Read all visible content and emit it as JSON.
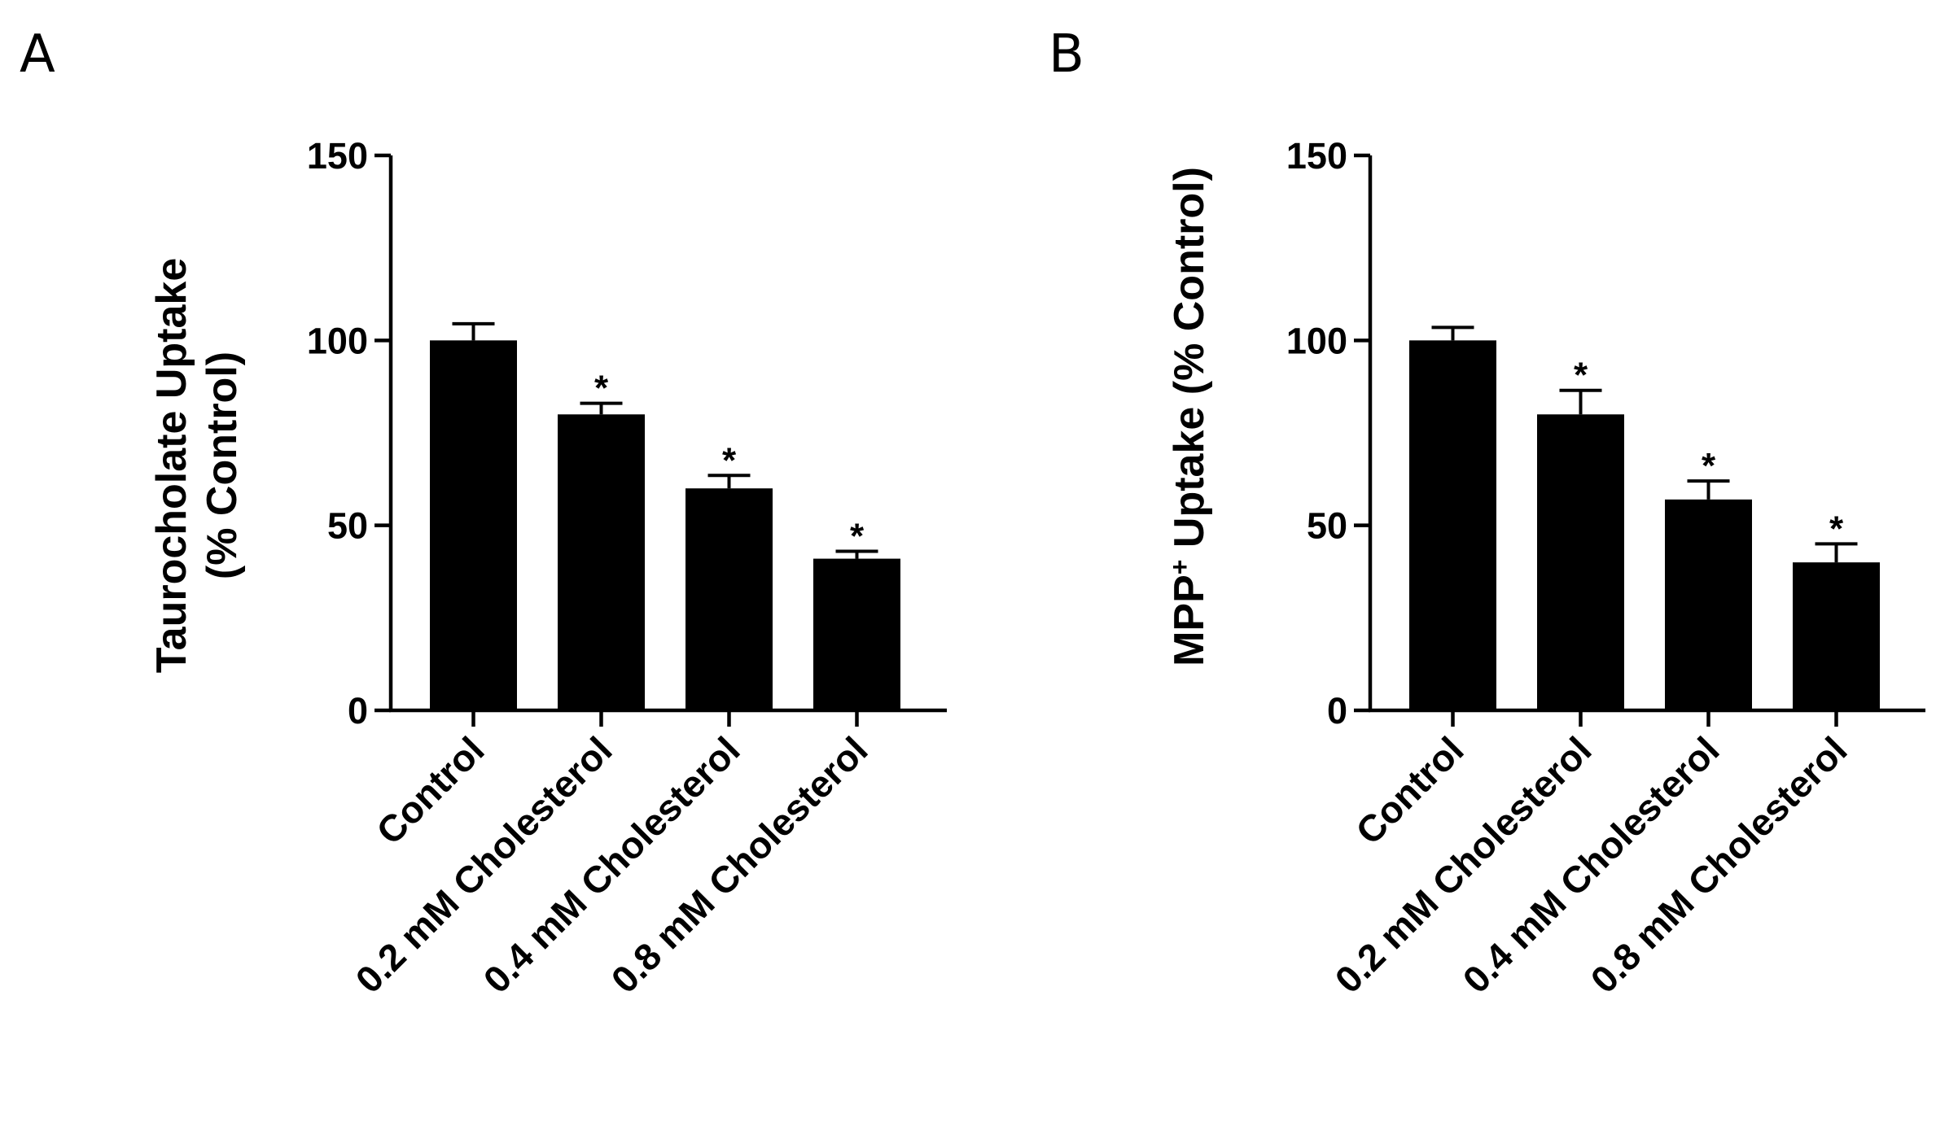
{
  "chart_data": [
    {
      "type": "bar",
      "panel": "A",
      "ylabel_lines": [
        "Taurocholate Uptake",
        "(% Control)"
      ],
      "ylim": [
        0,
        150
      ],
      "yticks": [
        0,
        50,
        100,
        150
      ],
      "categories": [
        "Control",
        "0.2 mM Cholesterol",
        "0.4 mM Cholesterol",
        "0.8 mM Cholesterol"
      ],
      "values": [
        100,
        80,
        60,
        41
      ],
      "errors": [
        4.5,
        3,
        3.5,
        2
      ],
      "significance": [
        "",
        "*",
        "*",
        "*"
      ],
      "bar_color": "#000000"
    },
    {
      "type": "bar",
      "panel": "B",
      "ylabel_parts": [
        "MPP",
        "+",
        " Uptake (% Control)"
      ],
      "ylim": [
        0,
        150
      ],
      "yticks": [
        0,
        50,
        100,
        150
      ],
      "categories": [
        "Control",
        "0.2 mM Cholesterol",
        "0.4 mM Cholesterol",
        "0.8 mM Cholesterol"
      ],
      "values": [
        100,
        80,
        57,
        40
      ],
      "errors": [
        3.5,
        6.5,
        5,
        5
      ],
      "significance": [
        "",
        "*",
        "*",
        "*"
      ],
      "bar_color": "#000000"
    }
  ]
}
